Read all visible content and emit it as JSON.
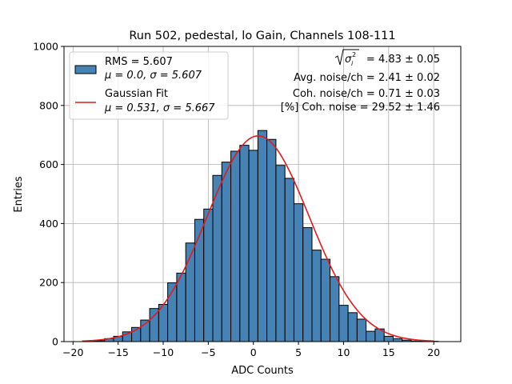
{
  "chart_data": {
    "type": "bar",
    "title": "Run 502, pedestal, lo Gain, Channels 108-111",
    "xlabel": "ADC Counts",
    "ylabel": "Entries",
    "xlim": [
      -21,
      23
    ],
    "ylim": [
      0,
      1000
    ],
    "xticks": [
      -20,
      -15,
      -10,
      -5,
      0,
      5,
      10,
      15,
      20
    ],
    "yticks": [
      0,
      200,
      400,
      600,
      800,
      1000
    ],
    "grid": true,
    "legend_position": "upper-left",
    "bin_width": 1,
    "bins": [
      {
        "x": -18,
        "count": 2
      },
      {
        "x": -17,
        "count": 3
      },
      {
        "x": -16,
        "count": 10
      },
      {
        "x": -15,
        "count": 18
      },
      {
        "x": -14,
        "count": 33
      },
      {
        "x": -13,
        "count": 48
      },
      {
        "x": -12,
        "count": 73
      },
      {
        "x": -11,
        "count": 112
      },
      {
        "x": -10,
        "count": 126
      },
      {
        "x": -9,
        "count": 199
      },
      {
        "x": -8,
        "count": 232
      },
      {
        "x": -7,
        "count": 334
      },
      {
        "x": -6,
        "count": 414
      },
      {
        "x": -5,
        "count": 449
      },
      {
        "x": -4,
        "count": 563
      },
      {
        "x": -3,
        "count": 608
      },
      {
        "x": -2,
        "count": 645
      },
      {
        "x": -1,
        "count": 665
      },
      {
        "x": 0,
        "count": 648
      },
      {
        "x": 1,
        "count": 715
      },
      {
        "x": 2,
        "count": 685
      },
      {
        "x": 3,
        "count": 597
      },
      {
        "x": 4,
        "count": 553
      },
      {
        "x": 5,
        "count": 467
      },
      {
        "x": 6,
        "count": 386
      },
      {
        "x": 7,
        "count": 310
      },
      {
        "x": 8,
        "count": 279
      },
      {
        "x": 9,
        "count": 220
      },
      {
        "x": 10,
        "count": 123
      },
      {
        "x": 11,
        "count": 98
      },
      {
        "x": 12,
        "count": 76
      },
      {
        "x": 13,
        "count": 35
      },
      {
        "x": 14,
        "count": 43
      },
      {
        "x": 15,
        "count": 18
      },
      {
        "x": 16,
        "count": 10
      },
      {
        "x": 17,
        "count": 5
      },
      {
        "x": 18,
        "count": 2
      },
      {
        "x": 19,
        "count": 2
      },
      {
        "x": 20,
        "count": 1
      }
    ],
    "fit": {
      "type": "gaussian",
      "mu": 0.531,
      "sigma": 5.667,
      "amplitude": 697,
      "x_range": [
        -19,
        20
      ]
    },
    "colors": {
      "bar_fill": "#4682b4",
      "bar_edge": "#000000",
      "fit_line": "#e41a1c",
      "grid": "#b0b0b0"
    },
    "legend": {
      "hist_label_line1": "RMS = 5.607",
      "hist_label_mu": "μ = 0.0, ",
      "hist_label_sigma": "σ = 5.607",
      "fit_label_line1": "Gaussian Fit",
      "fit_label_mu": "μ = 0.531, ",
      "fit_label_sigma": "σ = 5.667"
    },
    "annotations": {
      "total_noise_value": " = 4.83 ± 0.05",
      "avg_noise": "Avg. noise/ch = 2.41 ± 0.02",
      "coh_noise": "Coh. noise/ch = 0.71 ± 0.03",
      "pct_coh_noise": "[%] Coh. noise = 29.52 ± 1.46"
    }
  }
}
